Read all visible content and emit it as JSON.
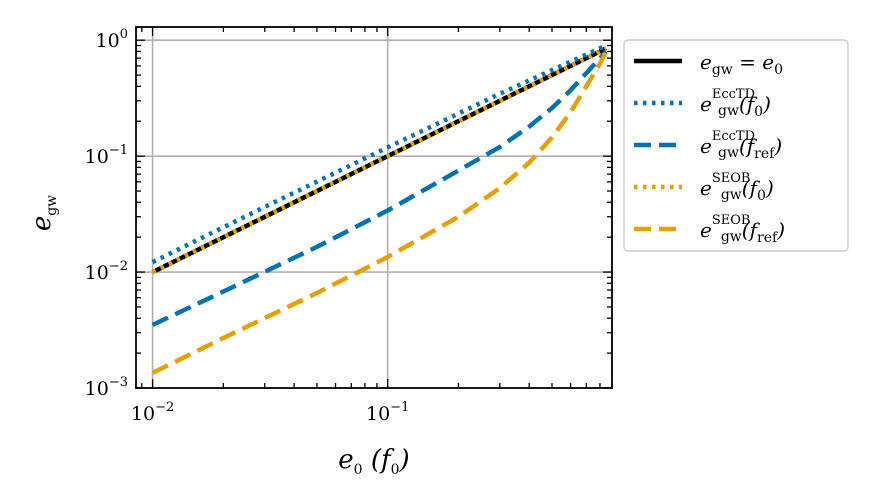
{
  "chart_data": {
    "type": "line",
    "xscale": "log",
    "yscale": "log",
    "xlim": [
      0.0085,
      0.9
    ],
    "ylim": [
      0.001,
      1.3
    ],
    "xlabel": {
      "main": "e",
      "sub": "0",
      "rest": " (f",
      "rest_sub": "0",
      "close": ")"
    },
    "ylabel": {
      "main": "e",
      "sub": "gw"
    },
    "x_ticks": [
      {
        "value": 0.01,
        "base": "10",
        "exp": "−2"
      },
      {
        "value": 0.1,
        "base": "10",
        "exp": "−1"
      }
    ],
    "y_ticks": [
      {
        "value": 0.001,
        "base": "10",
        "exp": "−3"
      },
      {
        "value": 0.01,
        "base": "10",
        "exp": "−2"
      },
      {
        "value": 0.1,
        "base": "10",
        "exp": "−1"
      },
      {
        "value": 1,
        "base": "10",
        "exp": "0"
      }
    ],
    "grid": true,
    "legend_placement": "outside-right",
    "series": [
      {
        "key": "eq",
        "name": "e_gw = e_0",
        "legend": {
          "main": "e",
          "sub": "gw",
          "sup": "",
          "rest": " = e",
          "rest_sub": "0",
          "tail": ""
        },
        "color": "#000000",
        "style": "solid",
        "x": [
          0.01,
          0.03,
          0.1,
          0.3,
          0.85
        ],
        "y": [
          0.01,
          0.03,
          0.1,
          0.3,
          0.85
        ]
      },
      {
        "key": "ecctd_f0",
        "name": "e_gw^EccTD(f_0)",
        "legend": {
          "main": "e",
          "sub": "gw",
          "sup": "EccTD",
          "rest": "(f",
          "rest_sub": "0",
          "tail": ")"
        },
        "color": "#0072b2",
        "style": "dotted",
        "x": [
          0.01,
          0.03,
          0.1,
          0.3,
          0.85
        ],
        "y": [
          0.0122,
          0.0365,
          0.119,
          0.345,
          0.9
        ]
      },
      {
        "key": "ecctd_fref",
        "name": "e_gw^EccTD(f_ref)",
        "legend": {
          "main": "e",
          "sub": "gw",
          "sup": "EccTD",
          "rest": "(f",
          "rest_sub": "ref",
          "tail": ")"
        },
        "color": "#0072b2",
        "style": "dashed",
        "x": [
          0.01,
          0.02,
          0.05,
          0.1,
          0.2,
          0.3,
          0.4,
          0.5,
          0.6,
          0.7,
          0.8,
          0.85
        ],
        "y": [
          0.0035,
          0.0068,
          0.0165,
          0.034,
          0.075,
          0.12,
          0.18,
          0.26,
          0.37,
          0.52,
          0.7,
          0.8
        ]
      },
      {
        "key": "seob_f0",
        "name": "e_gw^SEOB(f_0)",
        "legend": {
          "main": "e",
          "sub": "gw",
          "sup": "SEOB",
          "rest": "(f",
          "rest_sub": "0",
          "tail": ")"
        },
        "color": "#e69f00",
        "style": "dotted",
        "x": [
          0.01,
          0.03,
          0.1,
          0.3,
          0.85
        ],
        "y": [
          0.01,
          0.03,
          0.1,
          0.3,
          0.85
        ]
      },
      {
        "key": "seob_fref",
        "name": "e_gw^SEOB(f_ref)",
        "legend": {
          "main": "e",
          "sub": "gw",
          "sup": "SEOB",
          "rest": "(f",
          "rest_sub": "ref",
          "tail": ")"
        },
        "color": "#e69f00",
        "style": "dashed",
        "x": [
          0.01,
          0.02,
          0.05,
          0.1,
          0.2,
          0.3,
          0.4,
          0.5,
          0.6,
          0.7,
          0.8,
          0.85
        ],
        "y": [
          0.00135,
          0.0027,
          0.0066,
          0.0135,
          0.03,
          0.053,
          0.088,
          0.145,
          0.24,
          0.4,
          0.63,
          0.8
        ]
      }
    ]
  }
}
